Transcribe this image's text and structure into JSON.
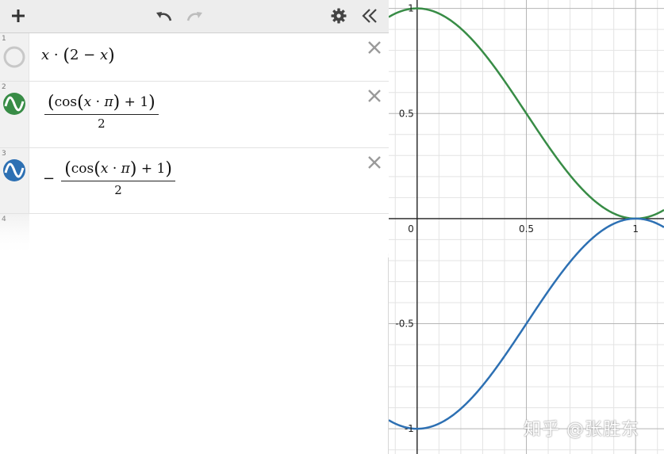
{
  "toolbar": {
    "add_icon": "plus-icon",
    "undo_icon": "undo-icon",
    "redo_icon": "redo-icon",
    "settings_icon": "gear-icon",
    "collapse_icon": "double-chevron-left-icon"
  },
  "expressions": [
    {
      "index": "1",
      "latex_parts": [
        "x",
        "·",
        "(",
        "2",
        "−",
        "x",
        ")"
      ],
      "color": "#c8c8c8",
      "hidden": true
    },
    {
      "index": "2",
      "numerator": [
        "(",
        "cos",
        "(",
        "x",
        "·",
        "π",
        ")",
        "+",
        "1",
        ")"
      ],
      "denominator": "2",
      "sign": "",
      "color": "#388c46"
    },
    {
      "index": "3",
      "numerator": [
        "(",
        "cos",
        "(",
        "x",
        "·",
        "π",
        ")",
        "+",
        "1",
        ")"
      ],
      "denominator": "2",
      "sign": "−",
      "color": "#2d70b3"
    },
    {
      "index": "4"
    }
  ],
  "chart_data": {
    "type": "line",
    "xlim": [
      -0.13,
      1.13
    ],
    "ylim": [
      -1.12,
      1.04
    ],
    "x_ticks": [
      {
        "value": 0,
        "label": "0"
      },
      {
        "value": 0.5,
        "label": "0.5"
      },
      {
        "value": 1,
        "label": "1"
      }
    ],
    "y_ticks": [
      {
        "value": 1,
        "label": "1"
      },
      {
        "value": 0.5,
        "label": "0.5"
      },
      {
        "value": -0.5,
        "label": "-0.5"
      },
      {
        "value": -1,
        "label": "-1"
      }
    ],
    "minor_grid_step": 0.1,
    "major_grid_step": 0.5,
    "grid": true,
    "series": [
      {
        "expression": "(cos(x·π)+1)/2",
        "color": "#388c46",
        "sign": 1
      },
      {
        "expression": "−(cos(x·π)+1)/2",
        "color": "#2d70b3",
        "sign": -1
      }
    ]
  },
  "watermark": "知乎 @张胜东"
}
